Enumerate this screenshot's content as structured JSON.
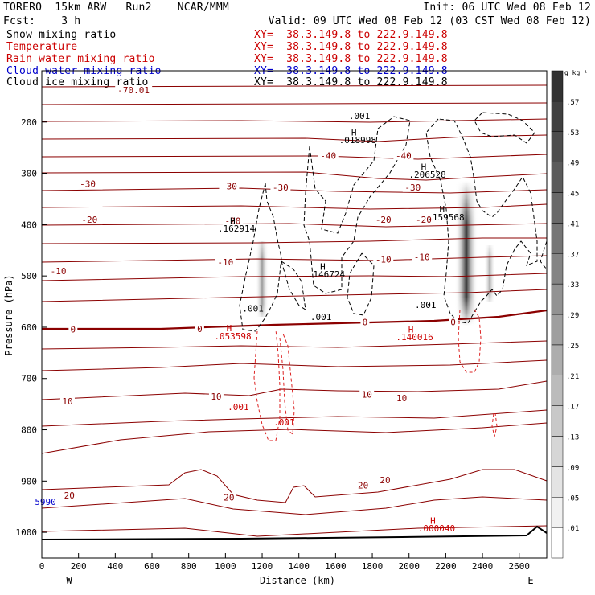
{
  "header": {
    "line1_left": "TORERO  15km ARW   Run2    NCAR/MMM",
    "line1_right": "Init: 06 UTC Wed 08 Feb 12",
    "line2_left": "Fcst:    3 h",
    "line2_right": "Valid: 09 UTC Wed 08 Feb 12 (03 CST Wed 08 Feb 12)"
  },
  "fields": [
    {
      "name": "Snow mixing ratio",
      "xy": "XY=  38.3.149.8 to 222.9.149.8",
      "color": "#000000"
    },
    {
      "name": "Temperature",
      "xy": "XY=  38.3.149.8 to 222.9.149.8",
      "color": "#cc0000"
    },
    {
      "name": "Rain water mixing ratio",
      "xy": "XY=  38.3.149.8 to 222.9.149.8",
      "color": "#cc0000"
    },
    {
      "name": "Cloud water mixing ratio",
      "xy": "XY=  38.3.149.8 to 222.9.149.8",
      "color": "#0000cc"
    },
    {
      "name": "Cloud ice mixing ratio",
      "xy": "XY=  38.3.149.8 to 222.9.149.8",
      "color": "#000000"
    }
  ],
  "chart_data": {
    "type": "contour",
    "xlabel": "Distance (km)",
    "ylabel": "Pressure (hPa)",
    "xlim": [
      0,
      2750
    ],
    "ylim": [
      1050,
      100
    ],
    "x_ticks": [
      0,
      200,
      400,
      600,
      800,
      1000,
      1200,
      1400,
      1600,
      1800,
      2000,
      2200,
      2400,
      2600
    ],
    "y_ticks": [
      200,
      300,
      400,
      500,
      600,
      700,
      800,
      900,
      1000
    ],
    "x_end_labels": {
      "left": "W",
      "right": "E"
    },
    "colorbar": {
      "unit": "g kg⁻¹",
      "levels": [
        ".01",
        ".05",
        ".09",
        ".13",
        ".17",
        ".21",
        ".25",
        ".29",
        ".33",
        ".37",
        ".41",
        ".45",
        ".49",
        ".53",
        ".57"
      ]
    },
    "temperature_labels": [
      {
        "text": "-40",
        "x": 1560,
        "p": 265
      },
      {
        "text": "-40",
        "x": 1970,
        "p": 265
      },
      {
        "text": "-30",
        "x": 250,
        "p": 320
      },
      {
        "text": "-30",
        "x": 1020,
        "p": 325
      },
      {
        "text": "-30",
        "x": 1300,
        "p": 327
      },
      {
        "text": "-30",
        "x": 2020,
        "p": 327
      },
      {
        "text": "-20",
        "x": 260,
        "p": 390
      },
      {
        "text": "-20",
        "x": 1040,
        "p": 392
      },
      {
        "text": "-20",
        "x": 1860,
        "p": 390
      },
      {
        "text": "-20",
        "x": 2080,
        "p": 390
      },
      {
        "text": "-10",
        "x": 90,
        "p": 490
      },
      {
        "text": "-10",
        "x": 1000,
        "p": 473
      },
      {
        "text": "-10",
        "x": 1860,
        "p": 468
      },
      {
        "text": "-10",
        "x": 2070,
        "p": 463
      },
      {
        "text": "0",
        "x": 170,
        "p": 604
      },
      {
        "text": "0",
        "x": 860,
        "p": 603
      },
      {
        "text": "0",
        "x": 1760,
        "p": 590
      },
      {
        "text": "0",
        "x": 2240,
        "p": 590
      },
      {
        "text": "10",
        "x": 140,
        "p": 744
      },
      {
        "text": "10",
        "x": 950,
        "p": 735
      },
      {
        "text": "10",
        "x": 1770,
        "p": 731
      },
      {
        "text": "10",
        "x": 1960,
        "p": 738
      },
      {
        "text": "20",
        "x": 150,
        "p": 928
      },
      {
        "text": "20",
        "x": 1020,
        "p": 932
      },
      {
        "text": "20",
        "x": 1750,
        "p": 908
      },
      {
        "text": "20",
        "x": 1870,
        "p": 898
      },
      {
        "text": "-70.01",
        "x": 500,
        "p": 138
      }
    ],
    "extrema": [
      {
        "label": "H",
        "value": ".162914",
        "x": 1060,
        "p": 400,
        "color": "#000000"
      },
      {
        "label": "H",
        "value": ".146724",
        "x": 1550,
        "p": 490,
        "color": "#000000"
      },
      {
        "label": "H",
        "value": ".018998",
        "x": 1720,
        "p": 228,
        "color": "#000000"
      },
      {
        "label": "H",
        "value": ".206528",
        "x": 2100,
        "p": 295,
        "color": "#000000"
      },
      {
        "label": "H",
        "value": ".159568",
        "x": 2200,
        "p": 378,
        "color": "#000000"
      },
      {
        "label": "H",
        "value": ".053598",
        "x": 1040,
        "p": 610,
        "color": "#cc0000"
      },
      {
        "label": "H",
        "value": ".140016",
        "x": 2030,
        "p": 612,
        "color": "#cc0000"
      },
      {
        "label": "H",
        "value": ".000040",
        "x": 2150,
        "p": 985,
        "color": "#cc0000"
      }
    ],
    "threshold_labels": [
      {
        "text": ".001",
        "x": 1730,
        "p": 188,
        "color": "#000000"
      },
      {
        "text": ".001",
        "x": 1150,
        "p": 563,
        "color": "#000000"
      },
      {
        "text": ".001",
        "x": 1520,
        "p": 580,
        "color": "#000000"
      },
      {
        "text": ".001",
        "x": 2090,
        "p": 556,
        "color": "#000000"
      },
      {
        "text": ".001",
        "x": 1070,
        "p": 755,
        "color": "#cc0000"
      },
      {
        "text": ".001",
        "x": 1320,
        "p": 785,
        "color": "#cc0000"
      }
    ],
    "other_labels": [
      {
        "text": "5990",
        "x": 20,
        "p": 940,
        "color": "#0000cc"
      }
    ]
  }
}
